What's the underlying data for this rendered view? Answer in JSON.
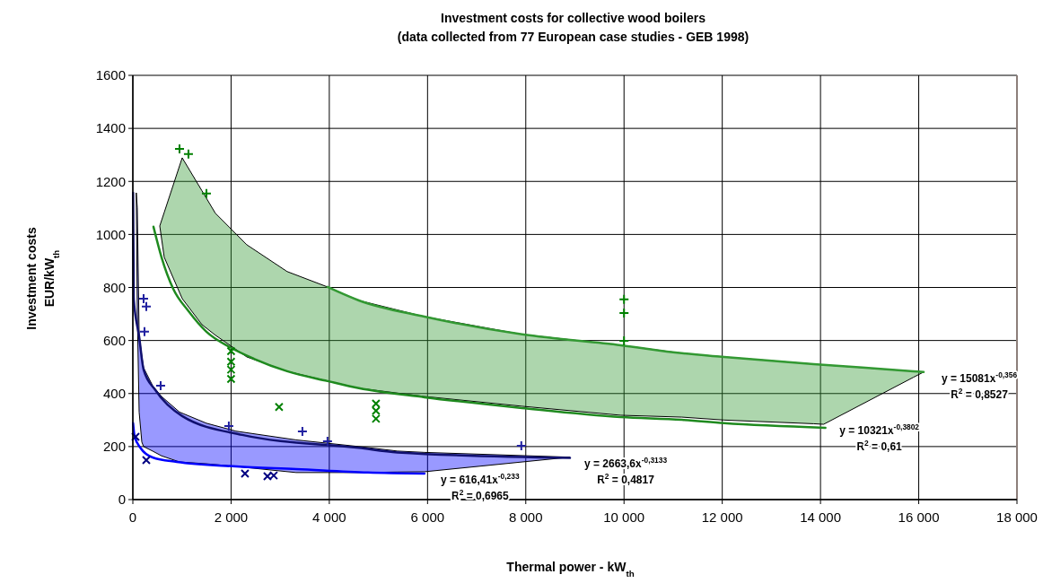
{
  "chart_data": {
    "type": "scatter",
    "title": "Investment costs for collective wood boilers",
    "subtitle": "(data collected from 77 European case studies - GEB 1998)",
    "xlabel": "Thermal power - kW$_{th}$",
    "ylabel": "Investment costs\nEUR/kW$_{th}$",
    "xlim": [
      0,
      18000
    ],
    "xticks": [
      0,
      {
        "value": 2000,
        "label": "2 000"
      },
      {
        "value": 4000,
        "label": "4 000"
      },
      {
        "value": 6000,
        "label": "6 000"
      },
      {
        "value": 8000,
        "label": "8 000"
      },
      {
        "value": 10000,
        "label": "10 000"
      },
      {
        "value": 12000,
        "label": "12 000"
      },
      {
        "value": 14000,
        "label": "14 000"
      },
      {
        "value": 16000,
        "label": "16 000"
      },
      {
        "value": 18000,
        "label": "18 000"
      }
    ],
    "ylim": [
      0,
      1600
    ],
    "yticks": [
      0,
      200,
      400,
      600,
      800,
      1000,
      1200,
      1400,
      1600
    ],
    "grid": true,
    "series": [
      {
        "type": "line",
        "color": "#1f8a1f",
        "x": [
          420,
          584,
          822,
          1132,
          1498,
          1973,
          2466,
          3141,
          3963,
          4603,
          5936,
          7927,
          9936,
          11178,
          12037,
          14100
        ],
        "values": [
          1029,
          914,
          795,
          711,
          633,
          575,
          531,
          484,
          447,
          420,
          386,
          345,
          311,
          301,
          288,
          271
        ]
      },
      {
        "type": "line",
        "color": "#339933",
        "x": [
          548,
          639,
          1005,
          1406,
          1680,
          2320,
          3141,
          3963,
          4603,
          5936,
          7927,
          9936,
          11178,
          12037,
          13863,
          14064,
          15890,
          16100
        ],
        "values": [
          null,
          null,
          null,
          null,
          null,
          null,
          null,
          802,
          751,
          690,
          623,
          582,
          552,
          538,
          511,
          null,
          484,
          481
        ],
        "upper": [
          1032,
          1083,
          1289,
          1165,
          1080,
          961,
          860,
          802,
          751,
          690,
          623,
          582,
          552,
          538,
          511,
          508,
          484,
          481
        ],
        "lower": [
          1032,
          914,
          758,
          660,
          620,
          538,
          484,
          447,
          420,
          389,
          352,
          318,
          311,
          300,
          286,
          284,
          461,
          481
        ]
      },
      {
        "type": "line",
        "color": "#0000ff",
        "x": [
          5,
          37,
          70,
          91,
          128,
          164,
          183,
          219,
          402,
          584,
          895,
          950,
          1498,
          2100,
          3324,
          4603,
          4785,
          5388,
          5936,
          8900
        ],
        "values": [
          288,
          237,
          null,
          null,
          null,
          193,
          null,
          null,
          159,
          null,
          142,
          null,
          null,
          125,
          115,
          null,
          102,
          null,
          98,
          null
        ],
        "upper": [
          null,
          null,
          1157,
          1100,
          623,
          null,
          540,
          497,
          430,
          389,
          null,
          330,
          288,
          258,
          225,
          200,
          null,
          183,
          178,
          160
        ],
        "lower": [
          null,
          null,
          1157,
          700,
          330,
          null,
          217,
          200,
          183,
          165,
          null,
          142,
          135,
          125,
          102,
          102,
          null,
          104,
          105,
          160
        ]
      },
      {
        "type": "line",
        "color": "#101070",
        "x": [
          5,
          18,
          128,
          219,
          457,
          1005,
          2228,
          4603,
          5388,
          8900
        ],
        "values": [
          1157,
          758,
          615,
          490,
          413,
          315,
          244,
          195,
          178,
          157
        ]
      },
      {
        "color": "#2020a0",
        "marker": "plus",
        "x": [
          219,
          274,
          237,
          566,
          1954,
          3452,
          3963,
          7909
        ],
        "values": [
          758,
          728,
          633,
          430,
          277,
          257,
          220,
          203
        ]
      },
      {
        "color": "#000080",
        "marker": "cross",
        "x": [
          55,
          274,
          2283,
          2740,
          2868
        ],
        "values": [
          237,
          149,
          98,
          88,
          91
        ]
      },
      {
        "color": "#008000",
        "marker": "plus",
        "x": [
          950,
          1132,
          1498,
          10000,
          10000,
          10000
        ],
        "values": [
          1323,
          1303,
          1154,
          755,
          704,
          599
        ]
      },
      {
        "color": "#008000",
        "marker": "cross",
        "x": [
          2000,
          2000,
          2000,
          2000,
          2977,
          4950,
          4950,
          4950
        ],
        "values": [
          560,
          520,
          490,
          455,
          349,
          362,
          335,
          305
        ]
      }
    ],
    "annotations": [
      {
        "text": "y = 616,41x$^{-0,233}$",
        "x": 5936,
        "y": 98
      },
      "R$^{2}$ = 0,6965",
      {
        "text": "y = 2663,6x$^{-0,3133}$",
        "x": 8900,
        "y": 160
      },
      "R$^{2}$ = 0,4817",
      {
        "text": "y = 10321x$^{-0,3802}$",
        "x": 14064,
        "y": 284
      },
      "R$^{2}$ = 0,61",
      {
        "text": "y = 15081x$^{-0,356}$",
        "x": 16100,
        "y": 481
      },
      "R$^{2}$ = 0,8527"
    ]
  }
}
